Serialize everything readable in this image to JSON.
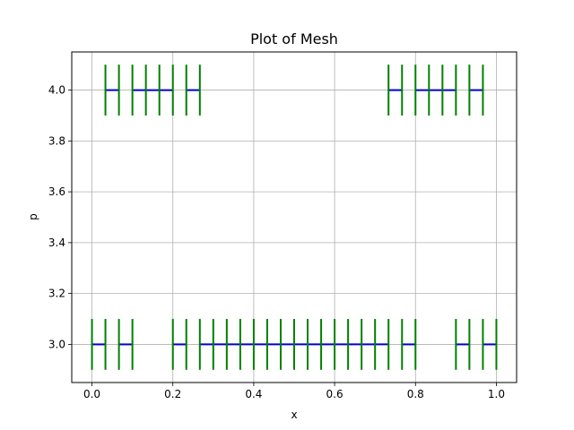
{
  "chart_data": {
    "type": "mesh",
    "title": "Plot of Mesh",
    "xlabel": "x",
    "ylabel": "p",
    "xlim": [
      -0.05,
      1.05
    ],
    "ylim": [
      2.85,
      4.15
    ],
    "grid": true,
    "x_ticks": [
      0.0,
      0.2,
      0.4,
      0.6,
      0.8,
      1.0
    ],
    "x_tick_labels": [
      "0.0",
      "0.2",
      "0.4",
      "0.6",
      "0.8",
      "1.0"
    ],
    "y_ticks": [
      3.0,
      3.2,
      3.4,
      3.6,
      3.8,
      4.0
    ],
    "y_tick_labels": [
      "3.0",
      "3.2",
      "3.4",
      "3.6",
      "3.8",
      "4.0"
    ],
    "node_color": "#008000",
    "element_color": "#0000cc",
    "node_half_height": 0.1,
    "series": [
      {
        "p": 3.0,
        "nodes": [
          0.0,
          0.0333,
          0.0667,
          0.1,
          0.2,
          0.2333,
          0.2667,
          0.3,
          0.3333,
          0.3667,
          0.4,
          0.4333,
          0.4667,
          0.5,
          0.5333,
          0.5667,
          0.6,
          0.6333,
          0.6667,
          0.7,
          0.7333,
          0.7667,
          0.8,
          0.9,
          0.9333,
          0.9667,
          1.0
        ],
        "elements": [
          [
            0.0,
            0.0333
          ],
          [
            0.0667,
            0.1
          ],
          [
            0.2,
            0.2333
          ],
          [
            0.2667,
            0.7333
          ],
          [
            0.7667,
            0.8
          ],
          [
            0.9,
            0.9333
          ],
          [
            0.9667,
            1.0
          ]
        ]
      },
      {
        "p": 4.0,
        "nodes": [
          0.0333,
          0.0667,
          0.1,
          0.1333,
          0.1667,
          0.2,
          0.2333,
          0.2667,
          0.7333,
          0.7667,
          0.8,
          0.8333,
          0.8667,
          0.9,
          0.9333,
          0.9667
        ],
        "elements": [
          [
            0.0333,
            0.0667
          ],
          [
            0.1,
            0.2
          ],
          [
            0.2333,
            0.2667
          ],
          [
            0.7333,
            0.7667
          ],
          [
            0.8,
            0.9
          ],
          [
            0.9333,
            0.9667
          ]
        ]
      }
    ]
  }
}
